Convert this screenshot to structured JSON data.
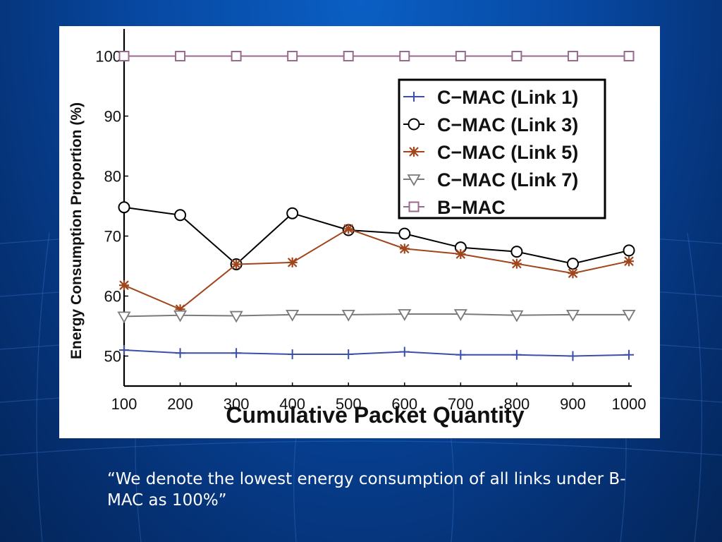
{
  "caption": "“We denote the lowest energy consumption of all links under B-MAC as 100%”",
  "chart_data": {
    "type": "line",
    "xlabel": "Cumulative Packet Quantity",
    "ylabel": "Energy Consumption Proportion (%)",
    "x": [
      100,
      200,
      300,
      400,
      500,
      600,
      700,
      800,
      900,
      1000
    ],
    "xlim": [
      100,
      1000
    ],
    "ylim": [
      45,
      105
    ],
    "yticks": [
      50,
      60,
      70,
      80,
      90,
      100
    ],
    "legend_position": "top-right",
    "grid": false,
    "series": [
      {
        "name": "C−MAC  (Link 1)",
        "marker": "plus",
        "color": "#3a4fa8",
        "values": [
          51.0,
          50.5,
          50.5,
          50.3,
          50.3,
          50.7,
          50.2,
          50.2,
          50.0,
          50.2
        ]
      },
      {
        "name": "C−MAC  (Link 3)",
        "marker": "circle",
        "color": "#000000",
        "values": [
          74.8,
          73.5,
          65.3,
          73.8,
          71.0,
          70.4,
          68.1,
          67.4,
          65.4,
          67.6
        ]
      },
      {
        "name": "C−MAC  (Link 5)",
        "marker": "asterisk",
        "color": "#a0451c",
        "values": [
          61.8,
          57.8,
          65.3,
          65.6,
          71.2,
          67.9,
          67.0,
          65.4,
          63.8,
          65.8
        ]
      },
      {
        "name": "C−MAC  (Link 7)",
        "marker": "triangle",
        "color": "#7a7a7a",
        "values": [
          56.6,
          56.8,
          56.7,
          56.9,
          56.9,
          57.0,
          57.0,
          56.8,
          56.9,
          56.9
        ]
      },
      {
        "name": "B−MAC",
        "marker": "square",
        "color": "#9a6a8e",
        "values": [
          100,
          100,
          100,
          100,
          100,
          100,
          100,
          100,
          100,
          100
        ]
      }
    ]
  }
}
